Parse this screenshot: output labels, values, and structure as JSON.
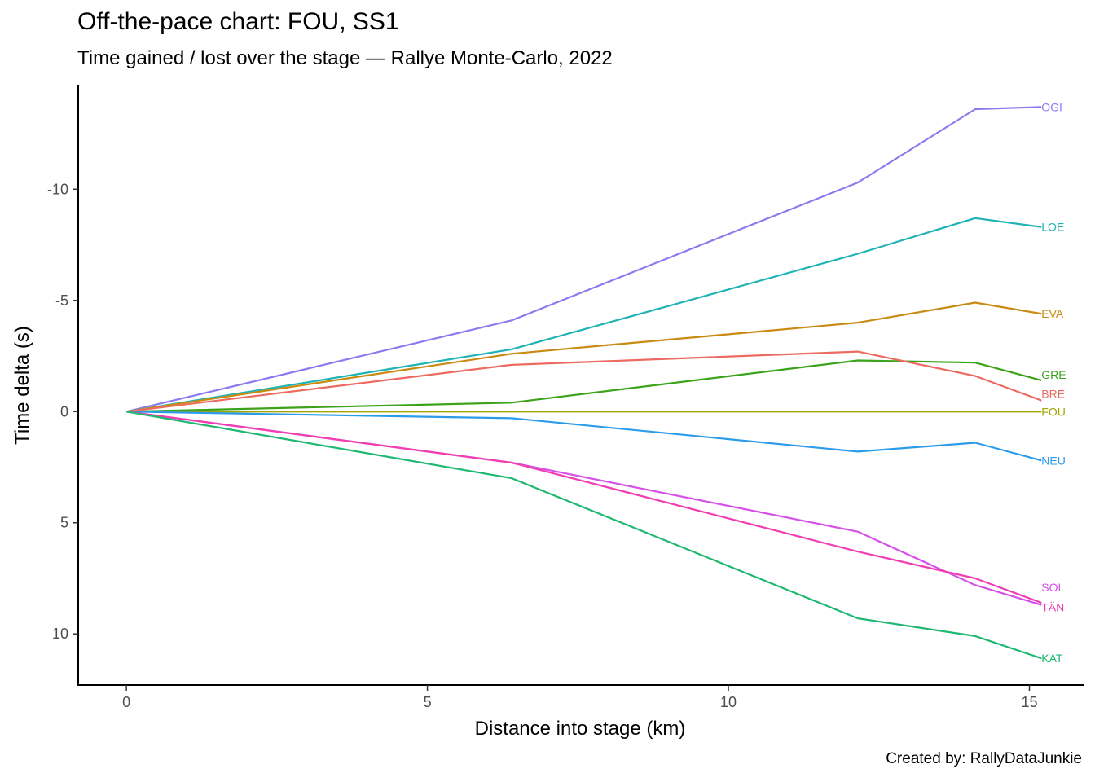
{
  "chart": {
    "title": "Off-the-pace chart: FOU, SS1",
    "subtitle": "Time gained / lost over the stage — Rallye Monte-Carlo, 2022",
    "caption": "Created by: RallyDataJunkie"
  },
  "chart_data": {
    "type": "line",
    "title": "Off-the-pace chart: FOU, SS1",
    "subtitle": "Time gained / lost over the stage — Rallye Monte-Carlo, 2022",
    "xlabel": "Distance into stage (km)",
    "ylabel": "Time delta (s)",
    "xlim": [
      -0.8,
      15.9
    ],
    "ylim": [
      12.3,
      -14.7
    ],
    "y_reversed": true,
    "x_ticks": [
      0,
      5,
      10,
      15
    ],
    "y_ticks": [
      -10,
      -5,
      0,
      5,
      10
    ],
    "grid": false,
    "legend": "none (labels at line ends)",
    "x": [
      0,
      6.4,
      12.15,
      14.1,
      15.2
    ],
    "series": [
      {
        "name": "OGI",
        "color": "#8B7BEF",
        "values": [
          0,
          -4.1,
          -10.3,
          -13.6,
          -13.7
        ]
      },
      {
        "name": "LOE",
        "color": "#1FB3B5",
        "values": [
          0,
          -2.8,
          -7.1,
          -8.7,
          -8.3
        ]
      },
      {
        "name": "EVA",
        "color": "#C98A12",
        "values": [
          0,
          -2.6,
          -4.0,
          -4.9,
          -4.4
        ]
      },
      {
        "name": "GRE",
        "color": "#3AA31A",
        "values": [
          0,
          -0.4,
          -2.3,
          -2.2,
          -1.4
        ]
      },
      {
        "name": "BRE",
        "color": "#EC6B61",
        "values": [
          0,
          -2.1,
          -2.7,
          -1.6,
          -0.5
        ]
      },
      {
        "name": "FOU",
        "color": "#A3A500",
        "values": [
          0,
          0,
          0,
          0,
          0
        ]
      },
      {
        "name": "NEU",
        "color": "#2C9CEA",
        "values": [
          0,
          0.3,
          1.8,
          1.4,
          2.2
        ]
      },
      {
        "name": "SOL",
        "color": "#D651E8",
        "values": [
          0,
          2.3,
          5.4,
          7.8,
          8.7
        ]
      },
      {
        "name": "TÄN",
        "color": "#F13FB3",
        "values": [
          0,
          2.3,
          6.3,
          7.5,
          8.6
        ]
      },
      {
        "name": "KAT",
        "color": "#1FB871",
        "values": [
          0,
          3.0,
          9.3,
          10.1,
          11.1
        ]
      }
    ],
    "end_label_positions": {
      "OGI": -13.7,
      "LOE": -8.3,
      "EVA": -4.4,
      "GRE": -1.65,
      "BRE": -0.8,
      "FOU": 0,
      "NEU": 2.2,
      "SOL": 7.9,
      "TÄN": 8.8,
      "KAT": 11.1
    }
  }
}
